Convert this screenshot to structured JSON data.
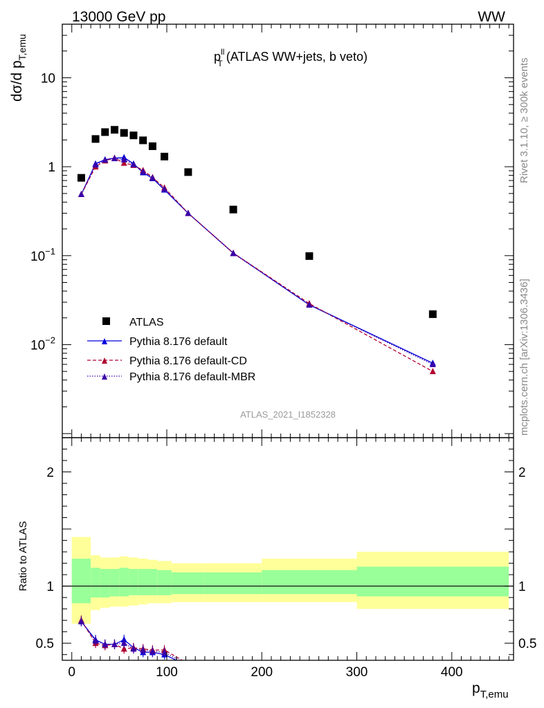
{
  "header": {
    "energy_label": "13000 GeV pp",
    "process_label": "WW"
  },
  "side_labels": {
    "rivet": "Rivet 3.1.10, ≥ 300k events",
    "mcplots": "mcplots.cern.ch [arXiv:1306.3436]"
  },
  "colors": {
    "atlas": "#000000",
    "default": "#0000dd",
    "cd": "#b00030",
    "mbr": "#3a00a8",
    "band_outer": "#ffff99",
    "band_inner": "#99ff99"
  },
  "chart_data": [
    {
      "type": "scatter",
      "title_main": "p",
      "title_sup": "ll",
      "title_sub": "T",
      "title_rest": " (ATLAS WW+jets, b veto)",
      "ylabel_main": "dσ/d p",
      "ylabel_sub": "T,emu",
      "y_scale": "log",
      "ylim": [
        0.0009,
        40
      ],
      "xlim": [
        -10,
        465
      ],
      "y_ticks": [
        {
          "value": 10,
          "base": "10",
          "exp": ""
        },
        {
          "value": 1,
          "base": "1",
          "exp": ""
        },
        {
          "value": 0.1,
          "base": "10",
          "exp": "−1"
        },
        {
          "value": 0.01,
          "base": "10",
          "exp": "−2"
        }
      ],
      "watermark": "ATLAS_2021_I1852328",
      "legend_position": "bottom-left",
      "series": [
        {
          "name": "ATLAS",
          "marker": "square",
          "x": [
            10,
            25,
            35,
            45,
            55,
            65,
            75,
            85,
            97.5,
            122.5,
            170,
            250,
            380
          ],
          "y": [
            0.75,
            2.05,
            2.45,
            2.6,
            2.4,
            2.25,
            1.98,
            1.7,
            1.3,
            0.87,
            0.33,
            0.099,
            0.022
          ]
        },
        {
          "name": "Pythia 8.176 default",
          "marker": "triangle",
          "line": "solid",
          "x": [
            10,
            25,
            35,
            45,
            55,
            65,
            75,
            85,
            97.5,
            122.5,
            170,
            250,
            380
          ],
          "y": [
            0.49,
            1.08,
            1.2,
            1.25,
            1.27,
            1.08,
            0.86,
            0.74,
            0.55,
            0.3,
            0.107,
            0.028,
            0.0062
          ]
        },
        {
          "name": "Pythia 8.176 default-CD",
          "marker": "triangle",
          "line": "dashed",
          "x": [
            10,
            25,
            35,
            45,
            55,
            65,
            75,
            85,
            97.5,
            122.5,
            170,
            250,
            380
          ],
          "y": [
            0.49,
            1.0,
            1.17,
            1.25,
            1.1,
            1.04,
            0.91,
            0.76,
            0.58,
            0.3,
            0.107,
            0.029,
            0.005
          ]
        },
        {
          "name": "Pythia 8.176 default-MBR",
          "marker": "triangle",
          "line": "dotted",
          "x": [
            10,
            25,
            35,
            45,
            55,
            65,
            75,
            85,
            97.5,
            122.5,
            170,
            250,
            380
          ],
          "y": [
            0.49,
            1.05,
            1.19,
            1.24,
            1.2,
            1.06,
            0.88,
            0.75,
            0.56,
            0.3,
            0.106,
            0.028,
            0.006
          ]
        }
      ]
    },
    {
      "type": "line",
      "ylabel": "Ratio to ATLAS",
      "xlabel_main": "p",
      "xlabel_sub": "T,emu",
      "ylim": [
        0.35,
        2.3
      ],
      "xlim": [
        -10,
        465
      ],
      "y_ticks": [
        0.5,
        1,
        2
      ],
      "y_tick_labels": [
        "0.5",
        "1",
        "2"
      ],
      "x_ticks": [
        0,
        100,
        200,
        300,
        400
      ],
      "x_tick_labels": [
        "0",
        "100",
        "200",
        "300",
        "400"
      ],
      "reference_line": 1,
      "bands": {
        "edges": [
          0,
          20,
          30,
          40,
          50,
          60,
          70,
          80,
          90,
          105,
          140,
          200,
          300,
          460
        ],
        "outer_low": [
          0.67,
          0.79,
          0.81,
          0.82,
          0.82,
          0.83,
          0.84,
          0.85,
          0.85,
          0.86,
          0.86,
          0.86,
          0.8
        ],
        "outer_high": [
          1.43,
          1.27,
          1.25,
          1.25,
          1.26,
          1.25,
          1.24,
          1.23,
          1.22,
          1.2,
          1.2,
          1.24,
          1.3
        ],
        "inner_low": [
          0.85,
          0.9,
          0.9,
          0.91,
          0.91,
          0.92,
          0.92,
          0.92,
          0.92,
          0.93,
          0.93,
          0.93,
          0.91
        ],
        "inner_high": [
          1.24,
          1.16,
          1.15,
          1.15,
          1.16,
          1.15,
          1.15,
          1.15,
          1.14,
          1.12,
          1.12,
          1.14,
          1.17
        ]
      },
      "series": [
        {
          "name": "Pythia 8.176 default",
          "x": [
            10,
            25,
            35,
            45,
            55,
            65,
            75,
            85,
            97.5,
            122.5
          ],
          "y": [
            0.69,
            0.53,
            0.49,
            0.49,
            0.53,
            0.46,
            0.42,
            0.42,
            0.4,
            0.3
          ]
        },
        {
          "name": "Pythia 8.176 default-CD",
          "x": [
            10,
            25,
            35,
            45,
            55,
            65,
            75,
            85,
            97.5,
            122.5
          ],
          "y": [
            0.7,
            0.5,
            0.48,
            0.49,
            0.45,
            0.46,
            0.45,
            0.44,
            0.44,
            0.32
          ]
        },
        {
          "name": "Pythia 8.176 default-MBR",
          "x": [
            10,
            25,
            35,
            45,
            55,
            65,
            75,
            85,
            97.5,
            122.5
          ],
          "y": [
            0.69,
            0.52,
            0.49,
            0.49,
            0.5,
            0.45,
            0.44,
            0.43,
            0.42,
            0.31
          ]
        }
      ]
    }
  ]
}
